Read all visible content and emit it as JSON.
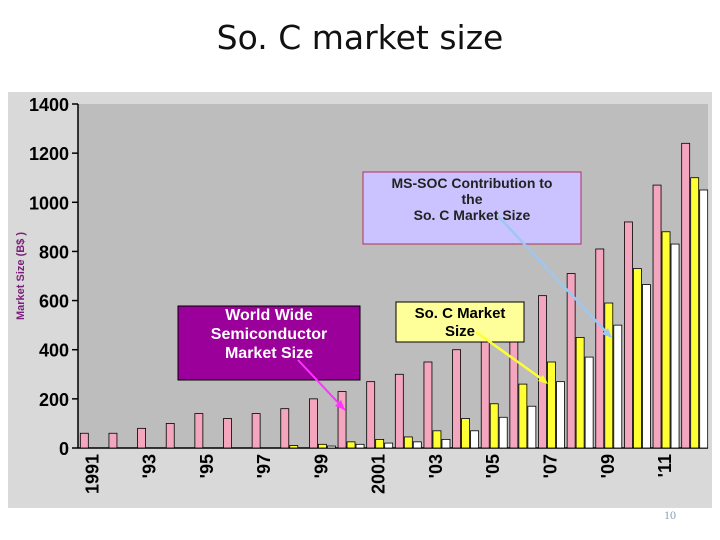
{
  "slide": {
    "title": "So. C market size",
    "page_number": "10"
  },
  "colors": {
    "panel_bg": "#d9d9d9",
    "plot_bg": "#bdbdbd",
    "pink": "#f4a6bf",
    "yellow": "#ffff33",
    "white": "#ffffff",
    "purple_box": "#9b009b",
    "lavender_box": "#cbc3ff",
    "yellow_box": "#ffff99",
    "magenta_arrow": "#ff33ff",
    "blue_arrow": "#9ec7f0",
    "yellow_arrow": "#ffff33"
  },
  "chart_data": {
    "type": "bar",
    "ylabel": "Market Size (B$ )",
    "ylim": [
      0,
      1400
    ],
    "yticks": [
      0,
      200,
      400,
      600,
      800,
      1000,
      1200,
      1400
    ],
    "categories": [
      "1991",
      "1992",
      "1993",
      "1994",
      "1995",
      "1996",
      "1997",
      "1998",
      "1999",
      "2000",
      "2001",
      "2002",
      "2003",
      "2004",
      "2005",
      "2006",
      "2007",
      "2008",
      "2009",
      "2010",
      "2011",
      "2012"
    ],
    "xtick_labels": [
      {
        "category": "1991",
        "label": "1991"
      },
      {
        "category": "1993",
        "label": "'93"
      },
      {
        "category": "1995",
        "label": "'95"
      },
      {
        "category": "1997",
        "label": "'97"
      },
      {
        "category": "1999",
        "label": "'99"
      },
      {
        "category": "2001",
        "label": "2001"
      },
      {
        "category": "2003",
        "label": "'03"
      },
      {
        "category": "2005",
        "label": "'05"
      },
      {
        "category": "2007",
        "label": "'07"
      },
      {
        "category": "2009",
        "label": "'09"
      },
      {
        "category": "2011",
        "label": "'11"
      }
    ],
    "series": [
      {
        "key": "semi",
        "color": "#f4a6bf",
        "values": [
          60,
          60,
          80,
          100,
          140,
          120,
          140,
          160,
          200,
          230,
          270,
          300,
          350,
          400,
          480,
          550,
          620,
          710,
          810,
          920,
          1070,
          1240
        ]
      },
      {
        "key": "soc",
        "color": "#ffff33",
        "values": [
          0,
          0,
          0,
          0,
          0,
          0,
          0,
          10,
          15,
          25,
          35,
          45,
          70,
          120,
          180,
          260,
          350,
          450,
          590,
          730,
          880,
          1100
        ]
      },
      {
        "key": "mssoc",
        "color": "#ffffff",
        "values": [
          0,
          0,
          0,
          0,
          0,
          0,
          0,
          0,
          8,
          15,
          20,
          25,
          35,
          70,
          125,
          170,
          270,
          370,
          500,
          665,
          830,
          1050
        ]
      }
    ],
    "annotations": {
      "world_wide": "World Wide Semiconductor Market Size",
      "soc": "So. C Market Size",
      "mssoc": "MS-SOC Contribution to the So. C Market Size"
    }
  }
}
